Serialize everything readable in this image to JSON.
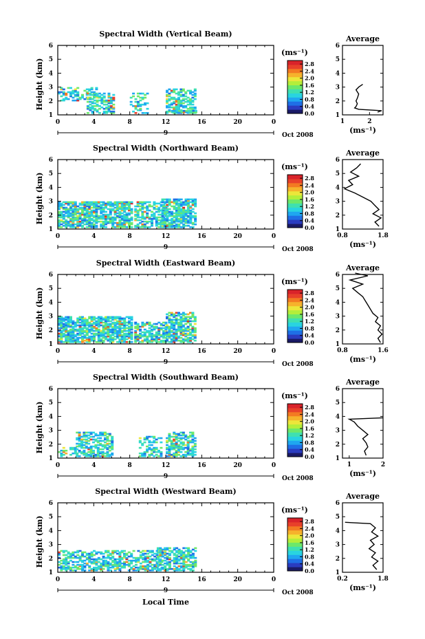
{
  "figure": {
    "date_label": "Oct 2008",
    "xlabel": "Local Time",
    "colorbar_unit": "(ms⁻¹)",
    "avg_xlabel": "(ms⁻¹)",
    "avg_title": "Average"
  },
  "chart_data": [
    {
      "type": "heatmap",
      "title": "Spectral Width (Vertical Beam)",
      "ylabel": "Height (km)",
      "x_ticks": [
        "0",
        "4",
        "8",
        "12",
        "16",
        "20",
        "0"
      ],
      "y_ticks": [
        "1",
        "2",
        "3",
        "4",
        "5",
        "6"
      ],
      "date_marker": "9",
      "xlim": [
        0,
        24
      ],
      "ylim": [
        1,
        6
      ],
      "colorbar_ticks": [
        "0.0",
        "0.4",
        "0.8",
        "1.2",
        "1.6",
        "2.0",
        "2.4",
        "2.8"
      ],
      "clim": [
        0,
        3.0
      ],
      "average": {
        "title": "Average",
        "x_ticks": [
          "1",
          "2"
        ],
        "xlim": [
          1.0,
          2.5
        ],
        "y": [
          1.2,
          1.3,
          1.4,
          1.5,
          1.6,
          1.8,
          2.0,
          2.2,
          2.5,
          2.8,
          3.0,
          3.2
        ],
        "x": [
          2.3,
          2.45,
          1.6,
          1.45,
          1.5,
          1.55,
          1.5,
          1.55,
          1.6,
          1.5,
          1.6,
          1.75
        ]
      }
    },
    {
      "type": "heatmap",
      "title": "Spectral Width (Northward Beam)",
      "ylabel": "Height (km)",
      "x_ticks": [
        "0",
        "4",
        "8",
        "12",
        "16",
        "20",
        "0"
      ],
      "y_ticks": [
        "1",
        "2",
        "3",
        "4",
        "5",
        "6"
      ],
      "date_marker": "9",
      "xlim": [
        0,
        24
      ],
      "ylim": [
        1,
        6
      ],
      "colorbar_ticks": [
        "0.0",
        "0.4",
        "0.8",
        "1.2",
        "1.6",
        "2.0",
        "2.4",
        "2.8"
      ],
      "clim": [
        0,
        3.0
      ],
      "average": {
        "title": "Average",
        "x_ticks": [
          "0.8",
          "1.8"
        ],
        "xlim": [
          0.8,
          1.8
        ],
        "y": [
          1.2,
          1.5,
          1.8,
          2.1,
          2.4,
          2.7,
          3.0,
          3.3,
          3.6,
          3.9,
          4.2,
          4.5,
          4.8,
          5.1,
          5.4,
          5.7
        ],
        "x": [
          1.7,
          1.6,
          1.75,
          1.55,
          1.7,
          1.6,
          1.5,
          1.3,
          1.1,
          0.85,
          1.05,
          0.95,
          1.2,
          1.0,
          1.15,
          1.25
        ]
      }
    },
    {
      "type": "heatmap",
      "title": "Spectral Width (Eastward Beam)",
      "ylabel": "Height (km)",
      "x_ticks": [
        "0",
        "4",
        "8",
        "12",
        "16",
        "20",
        "0"
      ],
      "y_ticks": [
        "1",
        "2",
        "3",
        "4",
        "5",
        "6"
      ],
      "date_marker": "9",
      "xlim": [
        0,
        24
      ],
      "ylim": [
        1,
        6
      ],
      "colorbar_ticks": [
        "0.0",
        "0.4",
        "0.8",
        "1.2",
        "1.6",
        "2.0",
        "2.4",
        "2.8"
      ],
      "clim": [
        0,
        3.0
      ],
      "average": {
        "title": "Average",
        "x_ticks": [
          "0.8",
          "1.6"
        ],
        "xlim": [
          0.8,
          1.6
        ],
        "y": [
          1.1,
          1.4,
          1.7,
          2.0,
          2.3,
          2.6,
          2.9,
          3.2,
          3.5,
          3.8,
          4.1,
          4.4,
          4.7,
          5.0,
          5.3,
          5.6,
          5.9,
          6.1
        ],
        "x": [
          1.55,
          1.5,
          1.58,
          1.5,
          1.55,
          1.45,
          1.5,
          1.4,
          1.35,
          1.3,
          1.25,
          1.2,
          1.1,
          1.0,
          1.2,
          0.95,
          1.3,
          1.05
        ]
      }
    },
    {
      "type": "heatmap",
      "title": "Spectral Width (Southward Beam)",
      "ylabel": "Height (km)",
      "x_ticks": [
        "0",
        "4",
        "8",
        "12",
        "16",
        "20",
        "0"
      ],
      "y_ticks": [
        "1",
        "2",
        "3",
        "4",
        "5",
        "6"
      ],
      "date_marker": "9",
      "xlim": [
        0,
        24
      ],
      "ylim": [
        1,
        6
      ],
      "colorbar_ticks": [
        "0.0",
        "0.4",
        "0.8",
        "1.2",
        "1.6",
        "2.0",
        "2.4",
        "2.8"
      ],
      "clim": [
        0,
        3.0
      ],
      "average": {
        "title": "Average",
        "x_ticks": [
          "1",
          "2"
        ],
        "xlim": [
          0.8,
          2.0
        ],
        "y": [
          1.2,
          1.5,
          1.8,
          2.1,
          2.4,
          2.7,
          3.0,
          3.3,
          3.6,
          3.8,
          3.9
        ],
        "x": [
          1.5,
          1.45,
          1.55,
          1.5,
          1.4,
          1.55,
          1.4,
          1.25,
          1.15,
          1.0,
          2.0
        ]
      }
    },
    {
      "type": "heatmap",
      "title": "Spectral Width (Westward Beam)",
      "ylabel": "Height (km)",
      "x_ticks": [
        "0",
        "4",
        "8",
        "12",
        "16",
        "20",
        "0"
      ],
      "y_ticks": [
        "1",
        "2",
        "3",
        "4",
        "5",
        "6"
      ],
      "date_marker": "9",
      "xlim": [
        0,
        24
      ],
      "ylim": [
        1,
        6
      ],
      "colorbar_ticks": [
        "0.0",
        "0.4",
        "0.8",
        "1.2",
        "1.6",
        "2.0",
        "2.4",
        "2.8"
      ],
      "clim": [
        0,
        3.0
      ],
      "average": {
        "title": "Average",
        "x_ticks": [
          "0.2",
          "1.8"
        ],
        "xlim": [
          0.2,
          1.8
        ],
        "y": [
          1.2,
          1.5,
          1.8,
          2.1,
          2.4,
          2.7,
          3.0,
          3.3,
          3.6,
          3.9,
          4.2,
          4.5,
          4.6
        ],
        "x": [
          1.55,
          1.4,
          1.6,
          1.35,
          1.5,
          1.25,
          1.45,
          1.3,
          1.6,
          1.35,
          1.5,
          1.3,
          0.3
        ]
      }
    }
  ]
}
